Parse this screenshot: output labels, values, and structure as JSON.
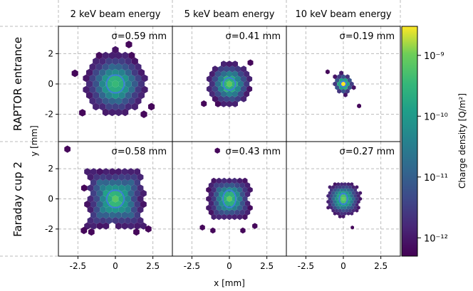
{
  "chart_data": {
    "type": "heatmap",
    "column_titles": [
      "2 keV beam energy",
      "5 keV beam energy",
      "10 keV beam energy"
    ],
    "row_titles": [
      "RAPTOR entrance",
      "Faraday  cup 2"
    ],
    "xlabel": "x [mm]",
    "ylabel": "y [mm]",
    "xlim": [
      -3.8,
      3.8
    ],
    "ylim": [
      -3.8,
      3.8
    ],
    "xticks": [
      "-2.5",
      "0",
      "2.5"
    ],
    "yticks": [
      "2",
      "0",
      "-2"
    ],
    "grid": true,
    "colorbar": {
      "label": "Charge density [Q/m²]",
      "scale": "log",
      "range": [
        5e-13,
        3e-09
      ],
      "ticks": [
        {
          "value": 1e-09,
          "label": "10⁻⁹"
        },
        {
          "value": 1e-10,
          "label": "10⁻¹⁰"
        },
        {
          "value": 1e-11,
          "label": "10⁻¹¹"
        },
        {
          "value": 1e-12,
          "label": "10⁻¹²"
        }
      ]
    },
    "panels": [
      {
        "row": 0,
        "col": 0,
        "sigma_label": "σ=0.59 mm",
        "sigma_mm": 0.59
      },
      {
        "row": 0,
        "col": 1,
        "sigma_label": "σ=0.41 mm",
        "sigma_mm": 0.41
      },
      {
        "row": 0,
        "col": 2,
        "sigma_label": "σ=0.19 mm",
        "sigma_mm": 0.19
      },
      {
        "row": 1,
        "col": 0,
        "sigma_label": "σ=0.58 mm",
        "sigma_mm": 0.58
      },
      {
        "row": 1,
        "col": 1,
        "sigma_label": "σ=0.43 mm",
        "sigma_mm": 0.43
      },
      {
        "row": 1,
        "col": 2,
        "sigma_label": "σ=0.27 mm",
        "sigma_mm": 0.27
      }
    ]
  }
}
